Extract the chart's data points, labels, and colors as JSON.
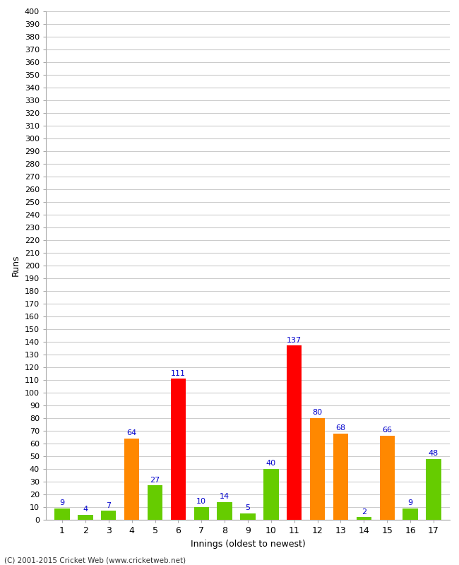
{
  "xlabel": "Innings (oldest to newest)",
  "ylabel": "Runs",
  "values": [
    9,
    4,
    7,
    64,
    27,
    111,
    10,
    14,
    5,
    40,
    137,
    80,
    68,
    2,
    66,
    9,
    48
  ],
  "colors": [
    "#66cc00",
    "#66cc00",
    "#66cc00",
    "#ff8800",
    "#66cc00",
    "#ff0000",
    "#66cc00",
    "#66cc00",
    "#66cc00",
    "#66cc00",
    "#ff0000",
    "#ff8800",
    "#ff8800",
    "#66cc00",
    "#ff8800",
    "#66cc00",
    "#66cc00"
  ],
  "ylim": [
    0,
    400
  ],
  "background_color": "#ffffff",
  "grid_color": "#cccccc",
  "label_color": "#0000cc",
  "copyright": "(C) 2001-2015 Cricket Web (www.cricketweb.net)"
}
